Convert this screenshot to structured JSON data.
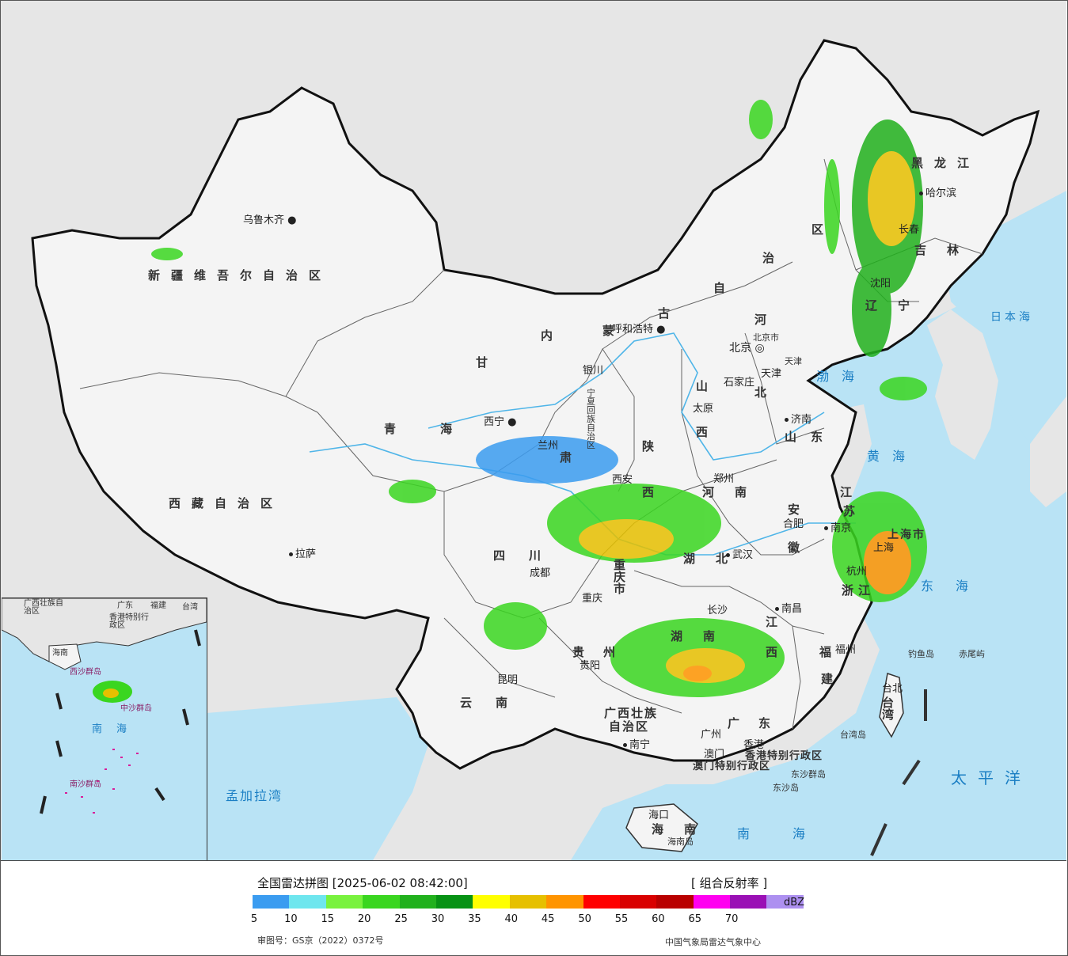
{
  "legend": {
    "title": "全国雷达拼图 [2025-06-02 08:42:00]",
    "product": "[ 组合反射率 ]",
    "unit": "dBZ",
    "ticks": [
      "5",
      "10",
      "15",
      "20",
      "25",
      "30",
      "35",
      "40",
      "45",
      "50",
      "55",
      "60",
      "65",
      "70"
    ],
    "colors": [
      "#3b9cf0",
      "#6ee6ee",
      "#79f23e",
      "#3ad620",
      "#21b11d",
      "#079214",
      "#ffff00",
      "#e6c000",
      "#ff9400",
      "#ff0000",
      "#d90000",
      "#b90000",
      "#ff00f0",
      "#9a10b5",
      "#ad90f0"
    ],
    "approval": "审图号：GS京（2022）0372号",
    "agency": "中国气象局雷达气象中心"
  },
  "regions": {
    "xinjiang": "新疆维吾尔自治区",
    "xizang": "西藏自治区",
    "qinghai": "青海",
    "gansu": "甘",
    "gansu2": "肃",
    "neimenggu1": "内",
    "neimenggu2": "蒙",
    "neimenggu3": "古",
    "neimenggu4": "自",
    "neimenggu5": "治",
    "neimenggu6": "区",
    "heilongjiang": "黑龙江",
    "jilin": "吉林",
    "liaoning": "辽宁",
    "hebei1": "河",
    "hebei2": "北",
    "shanxi1": "山",
    "shanxi2": "西",
    "shandong": "山东",
    "shaanxi1": "陕",
    "shaanxi2": "西",
    "henan": "河南",
    "hubei": "湖北",
    "hunan": "湖南",
    "anhui1": "安",
    "anhui2": "徽",
    "jiangsu1": "江",
    "jiangsu2": "苏",
    "zhejiang": "浙江",
    "jiangxi1": "江",
    "jiangxi2": "西",
    "fujian1": "福",
    "fujian2": "建",
    "sichuan": "四川",
    "chongqing": "重庆市",
    "guizhou": "贵州",
    "yunnan": "云南",
    "guangxi1": "广西壮族",
    "guangxi2": "自治区",
    "guangdong": "广东",
    "hainan": "海南",
    "taiwan": "台湾",
    "ningxia": "宁夏回族自治区",
    "shanghai": "上海市",
    "beijing": "北京市",
    "tianjin": "天津",
    "hk": "香港特别行政区",
    "macao": "澳门特别行政区"
  },
  "cities": {
    "urumqi": "乌鲁木齐",
    "lhasa": "拉萨",
    "xining": "西宁",
    "lanzhou": "兰州",
    "yinchuan": "银川",
    "huhehaote": "呼和浩特",
    "beijing": "北京",
    "tianjin": "天津",
    "shijiazhuang": "石家庄",
    "taiyuan": "太原",
    "jinan": "济南",
    "zhengzhou": "郑州",
    "xian": "西安",
    "chengdu": "成都",
    "chongqing": "重庆",
    "wuhan": "武汉",
    "hefei": "合肥",
    "nanjing": "南京",
    "shanghai": "上海",
    "hangzhou": "杭州",
    "changsha": "长沙",
    "nanchang": "南昌",
    "fuzhou": "福州",
    "guiyang": "贵阳",
    "kunming": "昆明",
    "nanning": "南宁",
    "guangzhou": "广州",
    "hongkong": "香港",
    "macau": "澳门",
    "haikou": "海口",
    "taibei": "台北",
    "harbin": "哈尔滨",
    "changchun": "长春",
    "shenyang": "沈阳"
  },
  "seas": {
    "japan_sea": "日本海",
    "bohai": "渤海",
    "yellow_sea": "黄海",
    "east_sea": "东海",
    "south_sea": "南海",
    "pacific": "太平洋",
    "bengal": "孟加拉湾"
  },
  "islands": {
    "diaoyu": "钓鱼岛",
    "chiwei": "赤尾屿",
    "dongsha": "东沙群岛",
    "dongsha_dao": "东沙岛",
    "hainan_dao": "海南岛",
    "taiwan_dao": "台湾岛"
  },
  "inset": {
    "guangxi": "广西壮族自治区",
    "guangdong": "广东",
    "fujian": "福建",
    "taiwan": "台湾",
    "hk_macao": "香港特别行政区",
    "hainan": "海南",
    "south_sea": "南海",
    "xisha": "西沙群岛",
    "nansha": "南沙群岛",
    "zhongsha": "中沙群岛"
  }
}
